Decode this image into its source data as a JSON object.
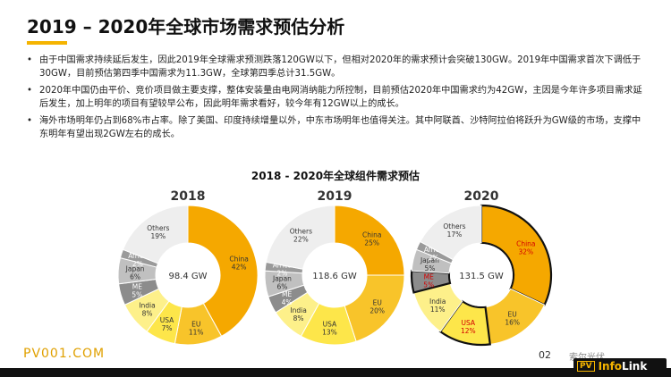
{
  "slide": {
    "title": "2019 – 2020年全球市场需求预估分析",
    "bullets": [
      "由于中国需求持续延后发生，因此2019年全球需求预测跌落120GW以下，但相对2020年的需求预计会突破130GW。2019年中国需求首次下调低于30GW，目前预估第四季中国需求为11.3GW，全球第四季总计31.5GW。",
      "2020年中国仍由平价、竞价项目做主要支撑，整体安装量由电网消纳能力所控制，目前预估2020年中国需求约为42GW，主因是今年许多项目需求延后发生，加上明年的项目有望较早公布，因此明年需求看好，较今年有12GW以上的成长。",
      "海外市场明年仍占到68%市占率。除了美国、印度持续增量以外，中东市场明年也值得关注。其中阿联酋、沙特阿拉伯将跃升为GW级的市场，支撑中东明年有望出现2GW左右的成长。"
    ],
    "footer_left": "PV001.COM",
    "page_number": "02",
    "watermark": "索尔光伏",
    "logo": {
      "pv": "PV",
      "info": "Info",
      "link": "Link"
    }
  },
  "chart_data": {
    "type": "pie",
    "title": "2018 - 2020年全球组件需求预估",
    "colors": {
      "China": "#f5a800",
      "EU": "#f8c42a",
      "USA": "#fde64a",
      "India": "#fdf08a",
      "ME": "#8c8c8c",
      "Japan": "#c0c0c0",
      "Africa": "#9a9a9a",
      "Others": "#eeeeee"
    },
    "charts": [
      {
        "year": "2018",
        "total": "98.4 GW",
        "slices": [
          {
            "name": "China",
            "label": "China",
            "value": 42,
            "text": "42%"
          },
          {
            "name": "EU",
            "label": "EU",
            "value": 11,
            "text": "11%"
          },
          {
            "name": "USA",
            "label": "USA",
            "value": 7,
            "text": "7%"
          },
          {
            "name": "India",
            "label": "India",
            "value": 8,
            "text": "8%"
          },
          {
            "name": "ME",
            "label": "ME",
            "value": 5,
            "text": "5%"
          },
          {
            "name": "Japan",
            "label": "Japan",
            "value": 6,
            "text": "6%"
          },
          {
            "name": "Africa",
            "label": "Africa",
            "value": 2,
            "text": "2%"
          },
          {
            "name": "Others",
            "label": "Others",
            "value": 19,
            "text": "19%"
          }
        ]
      },
      {
        "year": "2019",
        "total": "118.6 GW",
        "slices": [
          {
            "name": "China",
            "label": "China",
            "value": 25,
            "text": "25%"
          },
          {
            "name": "EU",
            "label": "EU",
            "value": 20,
            "text": "20%"
          },
          {
            "name": "USA",
            "label": "USA",
            "value": 13,
            "text": "13%"
          },
          {
            "name": "India",
            "label": "India",
            "value": 8,
            "text": "8%"
          },
          {
            "name": "ME",
            "label": "ME",
            "value": 4,
            "text": "4%"
          },
          {
            "name": "Japan",
            "label": "Japan",
            "value": 6,
            "text": "6%"
          },
          {
            "name": "Africa",
            "label": "Africa",
            "value": 2,
            "text": "2%"
          },
          {
            "name": "Others",
            "label": "Others",
            "value": 22,
            "text": "22%"
          }
        ]
      },
      {
        "year": "2020",
        "total": "131.5 GW",
        "slices": [
          {
            "name": "China",
            "label": "China",
            "value": 32,
            "text": "32%",
            "highlight": true
          },
          {
            "name": "EU",
            "label": "EU",
            "value": 16,
            "text": "16%"
          },
          {
            "name": "USA",
            "label": "USA",
            "value": 12,
            "text": "12%",
            "highlight": true
          },
          {
            "name": "India",
            "label": "India",
            "value": 11,
            "text": "11%"
          },
          {
            "name": "ME",
            "label": "ME",
            "value": 5,
            "text": "5%",
            "highlight": true
          },
          {
            "name": "Japan",
            "label": "Japan",
            "value": 5,
            "text": "5%"
          },
          {
            "name": "Africa",
            "label": "Africa",
            "value": 2,
            "text": "2%"
          },
          {
            "name": "Others",
            "label": "Others",
            "value": 17,
            "text": "17%"
          }
        ]
      }
    ]
  }
}
